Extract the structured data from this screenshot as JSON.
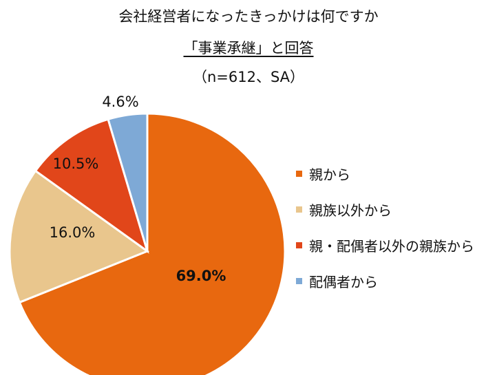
{
  "title": {
    "line1": "会社経営者になったきっかけは何ですか",
    "line2": "「事業承継」と回答",
    "line3": "（n=612、SA）"
  },
  "chart_data": {
    "type": "pie",
    "title": "会社経営者になったきっかけは何ですか 「事業承継」と回答 （n=612、SA）",
    "categories": [
      "親から",
      "親族以外から",
      "親・配偶者以外の親族から",
      "配偶者から"
    ],
    "values": [
      69.0,
      16.0,
      10.5,
      4.6
    ],
    "labels": [
      "69.0%",
      "16.0%",
      "10.5%",
      "4.6%"
    ],
    "colors": [
      "#E8680F",
      "#E9C68D",
      "#E1461A",
      "#7EA9D6"
    ],
    "start": "top, clockwise",
    "legend_position": "right"
  }
}
